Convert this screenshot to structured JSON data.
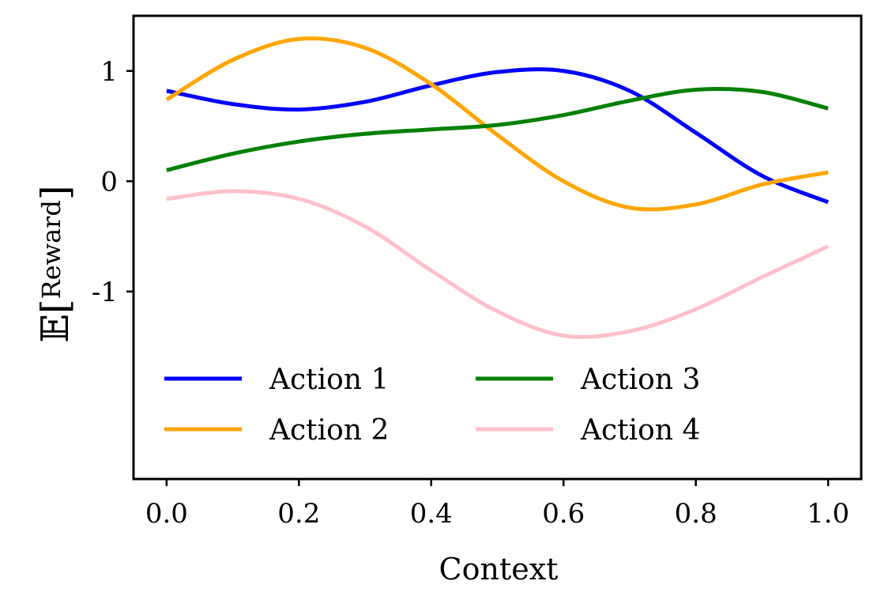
{
  "chart_data": {
    "type": "line",
    "xlabel": "Context",
    "ylabel": {
      "main": "𝔼[",
      "sub": "Reward",
      "close": "]"
    },
    "xlim": [
      -0.05,
      1.05
    ],
    "ylim": [
      -2.7,
      1.5
    ],
    "xticks": [
      0.0,
      0.2,
      0.4,
      0.6,
      0.8,
      1.0
    ],
    "xtick_labels": [
      "0.0",
      "0.2",
      "0.4",
      "0.6",
      "0.8",
      "1.0"
    ],
    "yticks": [
      1,
      0,
      -1
    ],
    "ytick_labels": [
      "1",
      "0",
      "-1"
    ],
    "grid": false,
    "legend_position": "lower-left",
    "legend_columns": 2,
    "x": [
      0.0,
      0.1,
      0.2,
      0.3,
      0.4,
      0.5,
      0.6,
      0.7,
      0.8,
      0.9,
      1.0
    ],
    "series": [
      {
        "name": "Action 1",
        "color": "#0000ff",
        "values": [
          0.82,
          0.7,
          0.65,
          0.72,
          0.87,
          0.99,
          1.0,
          0.82,
          0.44,
          0.05,
          -0.19
        ]
      },
      {
        "name": "Action 2",
        "color": "#ffa500",
        "values": [
          0.74,
          1.1,
          1.29,
          1.21,
          0.88,
          0.42,
          0.0,
          -0.24,
          -0.21,
          -0.03,
          0.08
        ]
      },
      {
        "name": "Action 3",
        "color": "#008000",
        "values": [
          0.1,
          0.25,
          0.36,
          0.43,
          0.47,
          0.51,
          0.6,
          0.73,
          0.83,
          0.81,
          0.66
        ]
      },
      {
        "name": "Action 4",
        "color": "#ffc0cb",
        "values": [
          -0.16,
          -0.09,
          -0.16,
          -0.41,
          -0.81,
          -1.18,
          -1.4,
          -1.36,
          -1.16,
          -0.87,
          -0.59
        ]
      }
    ]
  }
}
